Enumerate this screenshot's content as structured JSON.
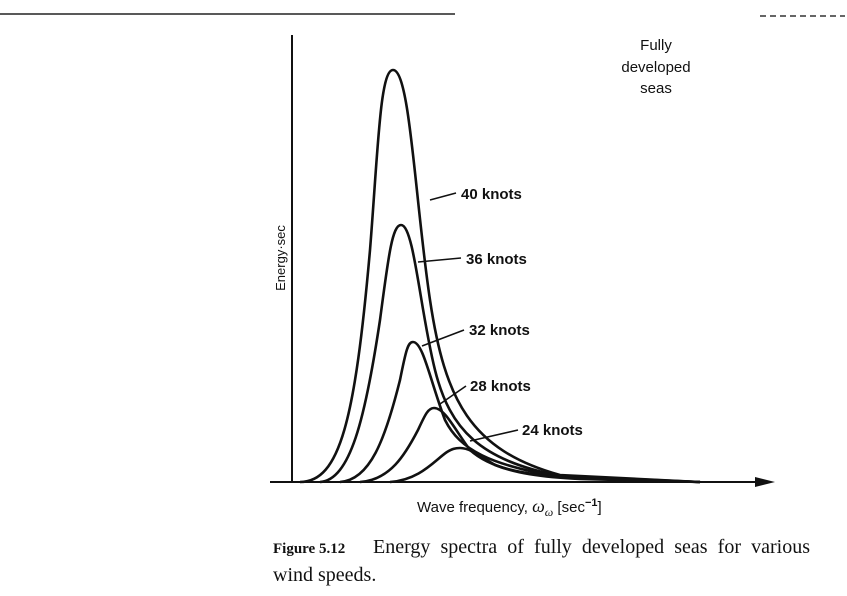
{
  "figure": {
    "y_label": "Energy·sec",
    "x_label": {
      "text": "Wave frequency, ",
      "symbol": "ω",
      "subscript": "ω",
      "unit_open": " [sec",
      "superscript": "−1",
      "unit_close": "]"
    },
    "annotation": [
      "Fully",
      "developed",
      "seas"
    ],
    "curve_labels": [
      "40 knots",
      "36 knots",
      "32 knots",
      "28 knots",
      "24 knots"
    ],
    "caption": {
      "label": "Figure 5.12",
      "text": "Energy spectra of fully developed seas for various wind speeds."
    }
  }
}
